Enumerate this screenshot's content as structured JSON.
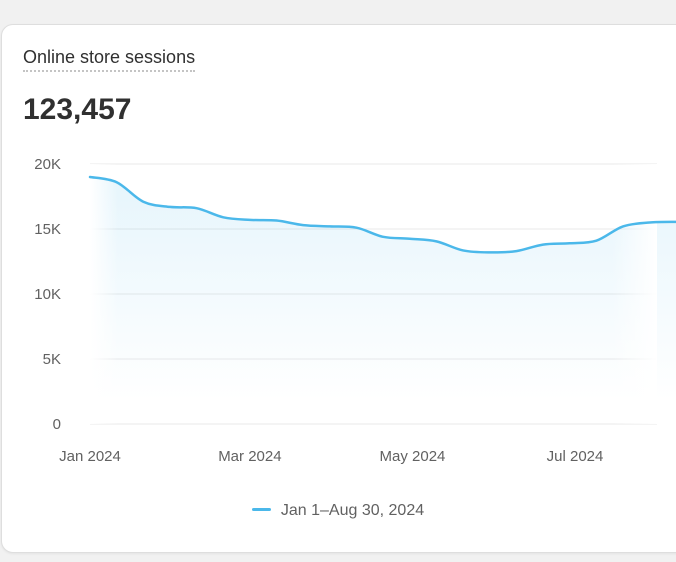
{
  "card": {
    "title": "Online store sessions",
    "total": "123,457"
  },
  "colors": {
    "line": "#4bb8ea",
    "fill": "#4bb8ea",
    "grid": "#e9e9e9",
    "text": "#303030",
    "muted": "#616161"
  },
  "chart_data": {
    "type": "area",
    "title": "",
    "xlabel": "",
    "ylabel": "",
    "ylim": [
      0,
      20000
    ],
    "y_ticks": [
      {
        "value": 20000,
        "label": "20K"
      },
      {
        "value": 15000,
        "label": "15K"
      },
      {
        "value": 10000,
        "label": "10K"
      },
      {
        "value": 5000,
        "label": "5K"
      },
      {
        "value": 0,
        "label": "0"
      }
    ],
    "x_ticks": [
      {
        "date": "2024-01-01",
        "label": "Jan 2024"
      },
      {
        "date": "2024-03-01",
        "label": "Mar 2024"
      },
      {
        "date": "2024-05-01",
        "label": "May 2024"
      },
      {
        "date": "2024-07-01",
        "label": "Jul 2024"
      }
    ],
    "xlim": [
      "2024-01-01",
      "2024-08-30"
    ],
    "grid": true,
    "legend_position": "bottom-center",
    "series": [
      {
        "name": "Jan 1–Aug 30, 2024",
        "points": [
          {
            "x": "2024-01-01",
            "y": 19000
          },
          {
            "x": "2024-01-11",
            "y": 18600
          },
          {
            "x": "2024-01-21",
            "y": 17100
          },
          {
            "x": "2024-01-31",
            "y": 16700
          },
          {
            "x": "2024-02-10",
            "y": 16600
          },
          {
            "x": "2024-02-20",
            "y": 15900
          },
          {
            "x": "2024-03-01",
            "y": 15700
          },
          {
            "x": "2024-03-11",
            "y": 15650
          },
          {
            "x": "2024-03-21",
            "y": 15300
          },
          {
            "x": "2024-03-31",
            "y": 15200
          },
          {
            "x": "2024-04-10",
            "y": 15100
          },
          {
            "x": "2024-04-20",
            "y": 14400
          },
          {
            "x": "2024-04-30",
            "y": 14250
          },
          {
            "x": "2024-05-10",
            "y": 14050
          },
          {
            "x": "2024-05-20",
            "y": 13350
          },
          {
            "x": "2024-05-30",
            "y": 13200
          },
          {
            "x": "2024-06-09",
            "y": 13300
          },
          {
            "x": "2024-06-19",
            "y": 13800
          },
          {
            "x": "2024-06-29",
            "y": 13900
          },
          {
            "x": "2024-07-09",
            "y": 14100
          },
          {
            "x": "2024-07-19",
            "y": 15200
          },
          {
            "x": "2024-07-29",
            "y": 15500
          },
          {
            "x": "2024-08-08",
            "y": 15550
          }
        ]
      }
    ]
  }
}
